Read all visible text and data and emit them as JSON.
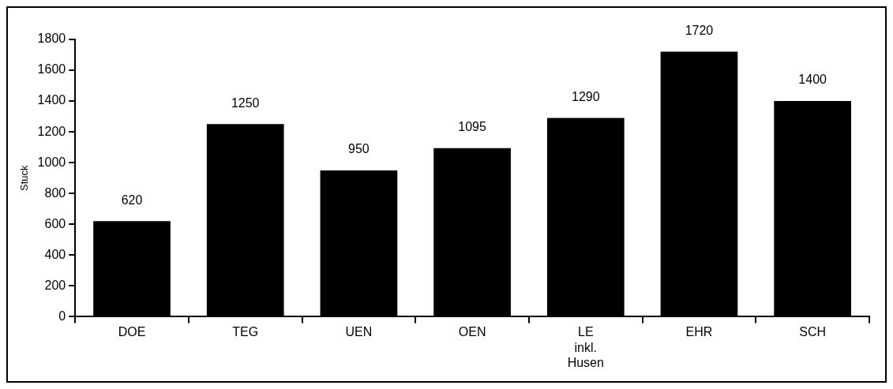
{
  "chart_data": {
    "type": "bar",
    "ylabel": "Stuck",
    "categories": [
      "DOE",
      "TEG",
      "UEN",
      "OEN",
      "LE inkl. Husen",
      "EHR",
      "SCH"
    ],
    "values": [
      620,
      1250,
      950,
      1095,
      1290,
      1720,
      1400
    ],
    "color": "#000000",
    "ylim": [
      0,
      1800
    ],
    "yticks": [
      0,
      200,
      400,
      600,
      800,
      1000,
      1200,
      1400,
      1600,
      1800
    ],
    "grid": false,
    "legend": false,
    "data_labels": true
  }
}
